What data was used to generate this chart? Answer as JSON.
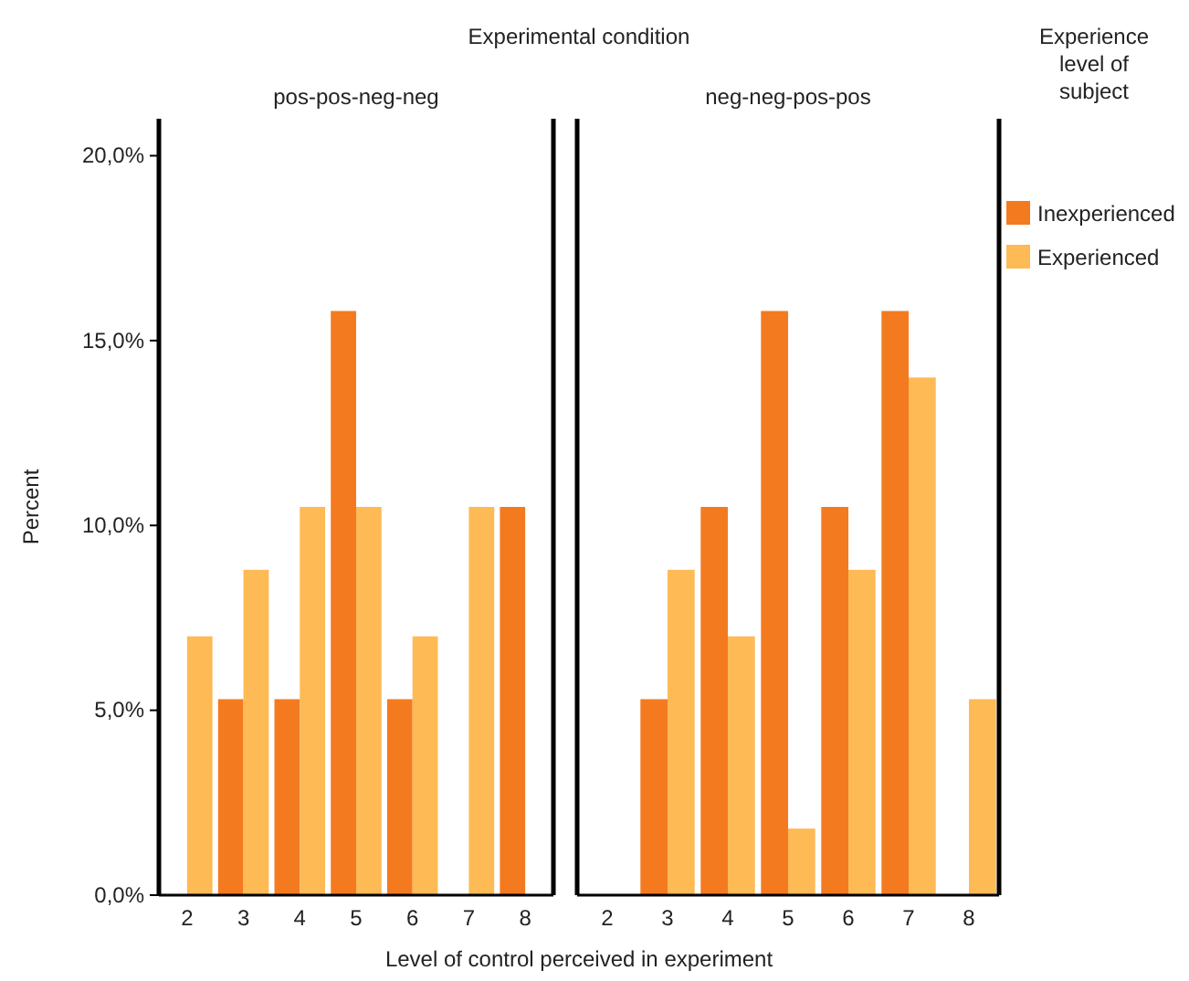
{
  "chart_data": [
    {
      "type": "bar",
      "title": "Experimental condition",
      "subtitle": "pos-pos-neg-neg",
      "xlabel": "Level of control perceived in experiment",
      "ylabel": "Percent",
      "categories": [
        "2",
        "3",
        "4",
        "5",
        "6",
        "7",
        "8"
      ],
      "series": [
        {
          "color": "#f47a20",
          "values": [
            null,
            5.3,
            5.3,
            15.8,
            5.3,
            null,
            10.5
          ]
        },
        {
          "color": "#fdba55",
          "values": [
            7.0,
            8.8,
            10.5,
            10.5,
            7.0,
            10.5,
            null
          ]
        }
      ],
      "ylim": [
        0,
        21
      ],
      "yticks": [
        {
          "value": 0,
          "label": "0,0%"
        },
        {
          "value": 5,
          "label": "5,0%"
        },
        {
          "value": 10,
          "label": "10,0%"
        },
        {
          "value": 15,
          "label": "15,0%"
        },
        {
          "value": 20,
          "label": "20,0%"
        }
      ],
      "grid": false,
      "legend": false
    },
    {
      "type": "bar",
      "subtitle": "neg-neg-pos-pos",
      "legend_title": "Experience level of subject",
      "categories": [
        "2",
        "3",
        "4",
        "5",
        "6",
        "7",
        "8"
      ],
      "series": [
        {
          "name": "Inexperienced",
          "color": "#f47a20",
          "values": [
            null,
            5.3,
            10.5,
            15.8,
            10.5,
            15.8,
            null
          ]
        },
        {
          "name": "Experienced",
          "color": "#fdba55",
          "values": [
            null,
            8.8,
            7.0,
            1.8,
            8.8,
            14.0,
            5.3
          ]
        }
      ],
      "ylim": [
        0,
        21
      ],
      "tick_labels": "x",
      "grid": false,
      "legend": "right"
    }
  ]
}
